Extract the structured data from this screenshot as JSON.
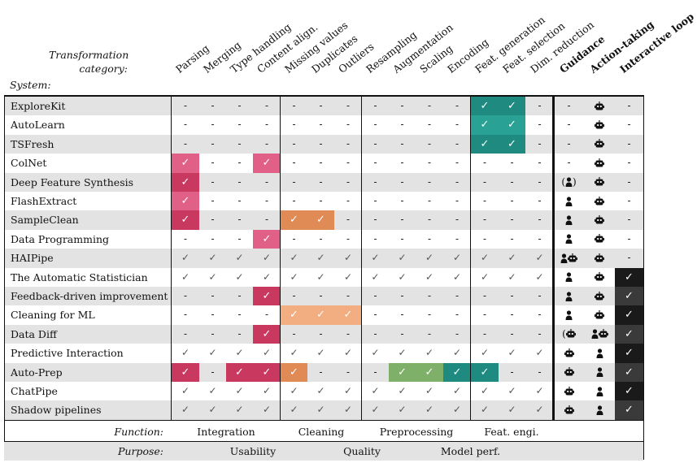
{
  "corner": {
    "category_label_1": "Transformation",
    "category_label_2": "category:",
    "system_label": "System:"
  },
  "columns": [
    {
      "label": "Parsing",
      "bold": false
    },
    {
      "label": "Merging",
      "bold": false
    },
    {
      "label": "Type handling",
      "bold": false
    },
    {
      "label": "Content align.",
      "bold": false
    },
    {
      "label": "Missing values",
      "bold": false
    },
    {
      "label": "Duplicates",
      "bold": false
    },
    {
      "label": "Outliers",
      "bold": false
    },
    {
      "label": "Resampling",
      "bold": false
    },
    {
      "label": "Augmentation",
      "bold": false
    },
    {
      "label": "Scaling",
      "bold": false
    },
    {
      "label": "Encoding",
      "bold": false
    },
    {
      "label": "Feat. generation",
      "bold": false
    },
    {
      "label": "Feat. selection",
      "bold": false
    },
    {
      "label": "Dim. reduction",
      "bold": false
    },
    {
      "label": "Guidance",
      "bold": true
    },
    {
      "label": "Action-taking",
      "bold": true
    },
    {
      "label": "Interactive loop",
      "bold": true
    }
  ],
  "colors": {
    "integration": "#c9385f",
    "integration_light": "#e06088",
    "cleaning": "#e08a55",
    "cleaning_light": "#f2ad80",
    "preprocessing": "#7fb069",
    "feateng": "#1f8a80",
    "feateng_light": "#2aa195",
    "loop_dark": "#1a1a1a",
    "loop_mid": "#3a3a3a",
    "shade": "#e3e3e3"
  },
  "rows": [
    {
      "name": "ExploreKit",
      "cells": [
        "-",
        "-",
        "-",
        "-",
        "-",
        "-",
        "-",
        "-",
        "-",
        "-",
        "-",
        "F",
        "F",
        "-",
        "-",
        "robot",
        "-"
      ]
    },
    {
      "name": "AutoLearn",
      "cells": [
        "-",
        "-",
        "-",
        "-",
        "-",
        "-",
        "-",
        "-",
        "-",
        "-",
        "-",
        "F",
        "F",
        "-",
        "-",
        "robot",
        "-"
      ]
    },
    {
      "name": "TSFresh",
      "cells": [
        "-",
        "-",
        "-",
        "-",
        "-",
        "-",
        "-",
        "-",
        "-",
        "-",
        "-",
        "F",
        "F",
        "-",
        "-",
        "robot",
        "-"
      ]
    },
    {
      "name": "ColNet",
      "cells": [
        "I",
        "-",
        "-",
        "I",
        "-",
        "-",
        "-",
        "-",
        "-",
        "-",
        "-",
        "-",
        "-",
        "-",
        "-",
        "robot",
        "-"
      ]
    },
    {
      "name": "Deep Feature Synthesis",
      "cells": [
        "I",
        "-",
        "-",
        "-",
        "-",
        "-",
        "-",
        "-",
        "-",
        "-",
        "-",
        "-",
        "-",
        "-",
        "(person)",
        "robot",
        "-"
      ]
    },
    {
      "name": "FlashExtract",
      "cells": [
        "I",
        "-",
        "-",
        "-",
        "-",
        "-",
        "-",
        "-",
        "-",
        "-",
        "-",
        "-",
        "-",
        "-",
        "person",
        "robot",
        "-"
      ]
    },
    {
      "name": "SampleClean",
      "cells": [
        "I",
        "-",
        "-",
        "-",
        "C",
        "C",
        "-",
        "-",
        "-",
        "-",
        "-",
        "-",
        "-",
        "-",
        "person",
        "robot",
        "-"
      ]
    },
    {
      "name": "Data Programming",
      "cells": [
        "-",
        "-",
        "-",
        "I",
        "-",
        "-",
        "-",
        "-",
        "-",
        "-",
        "-",
        "-",
        "-",
        "-",
        "person",
        "robot",
        "-"
      ]
    },
    {
      "name": "HAIPipe",
      "cells": [
        "v",
        "v",
        "v",
        "v",
        "v",
        "v",
        "v",
        "v",
        "v",
        "v",
        "v",
        "v",
        "v",
        "v",
        "personrobot",
        "robot",
        "-"
      ]
    },
    {
      "name": "The Automatic Statistician",
      "cells": [
        "v",
        "v",
        "v",
        "v",
        "v",
        "v",
        "v",
        "v",
        "v",
        "v",
        "v",
        "v",
        "v",
        "v",
        "person",
        "robot",
        "L"
      ]
    },
    {
      "name": "Feedback-driven improvement",
      "cells": [
        "-",
        "-",
        "-",
        "I",
        "-",
        "-",
        "-",
        "-",
        "-",
        "-",
        "-",
        "-",
        "-",
        "-",
        "person",
        "robot",
        "L"
      ]
    },
    {
      "name": "Cleaning for ML",
      "cells": [
        "-",
        "-",
        "-",
        "-",
        "C",
        "C",
        "C",
        "-",
        "-",
        "-",
        "-",
        "-",
        "-",
        "-",
        "person",
        "robot",
        "L"
      ]
    },
    {
      "name": "Data Diff",
      "cells": [
        "-",
        "-",
        "-",
        "I",
        "-",
        "-",
        "-",
        "-",
        "-",
        "-",
        "-",
        "-",
        "-",
        "-",
        "(robot)",
        "personrobot",
        "L"
      ]
    },
    {
      "name": "Predictive Interaction",
      "cells": [
        "v",
        "v",
        "v",
        "v",
        "v",
        "v",
        "v",
        "v",
        "v",
        "v",
        "v",
        "v",
        "v",
        "v",
        "robot",
        "person",
        "L"
      ]
    },
    {
      "name": "Auto-Prep",
      "cells": [
        "I",
        "-",
        "I",
        "I",
        "C",
        "-",
        "-",
        "-",
        "P",
        "P",
        "F",
        "F",
        "-",
        "-",
        "robot",
        "person",
        "L"
      ]
    },
    {
      "name": "ChatPipe",
      "cells": [
        "v",
        "v",
        "v",
        "v",
        "v",
        "v",
        "v",
        "v",
        "v",
        "v",
        "v",
        "v",
        "v",
        "v",
        "robot",
        "person",
        "L"
      ]
    },
    {
      "name": "Shadow pipelines",
      "cells": [
        "v",
        "v",
        "v",
        "v",
        "v",
        "v",
        "v",
        "v",
        "v",
        "v",
        "v",
        "v",
        "v",
        "v",
        "robot",
        "person",
        "L"
      ]
    }
  ],
  "footer": {
    "function_label": "Function:",
    "function_groups": [
      "Integration",
      "Cleaning",
      "Preprocessing",
      "Feat. engi."
    ],
    "purpose_label": "Purpose:",
    "purpose_groups": [
      "Usability",
      "Quality",
      "Model perf."
    ]
  },
  "symbols": {
    "check": "✓",
    "dash": "-"
  }
}
